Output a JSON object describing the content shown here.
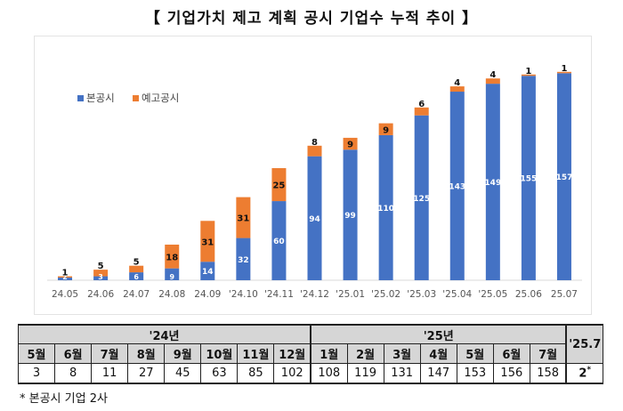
{
  "title": "【 기업가치 제고 계획 공시 기업수 누적 추이 】",
  "chart_data": {
    "type": "bar",
    "stacked": true,
    "categories": [
      "24.05",
      "24.06",
      "24.07",
      "24.08",
      "24.09",
      "'24.10",
      "'24.11",
      "'24.12",
      "'25.01",
      "'25.02",
      "'25.03",
      "'25.04",
      "'25.05",
      "25.06",
      "25.07"
    ],
    "series": [
      {
        "name": "본공시",
        "color": "#4472c4",
        "values": [
          2,
          3,
          6,
          9,
          14,
          32,
          60,
          94,
          99,
          110,
          125,
          143,
          149,
          155,
          157
        ]
      },
      {
        "name": "예고공시",
        "color": "#ed7d31",
        "values": [
          1,
          5,
          5,
          18,
          31,
          31,
          25,
          8,
          9,
          9,
          6,
          4,
          4,
          1,
          1
        ]
      }
    ],
    "legend_position": "top-left",
    "grid": false,
    "ylim": [
      0,
      170
    ]
  },
  "table": {
    "year_headers": [
      {
        "label": "'24년",
        "span": 8
      },
      {
        "label": "'25년",
        "span": 7
      },
      {
        "label": "'25.7",
        "span": 1
      }
    ],
    "months": [
      "5월",
      "6월",
      "7월",
      "8월",
      "9월",
      "10월",
      "11월",
      "12월",
      "1월",
      "2월",
      "3월",
      "4월",
      "5월",
      "6월",
      "7월"
    ],
    "values": [
      "3",
      "8",
      "11",
      "27",
      "45",
      "63",
      "85",
      "102",
      "108",
      "119",
      "131",
      "147",
      "153",
      "156",
      "158"
    ],
    "last_value": "2",
    "last_value_mark": "*"
  },
  "footnote": "*  본공시 기업 2사"
}
